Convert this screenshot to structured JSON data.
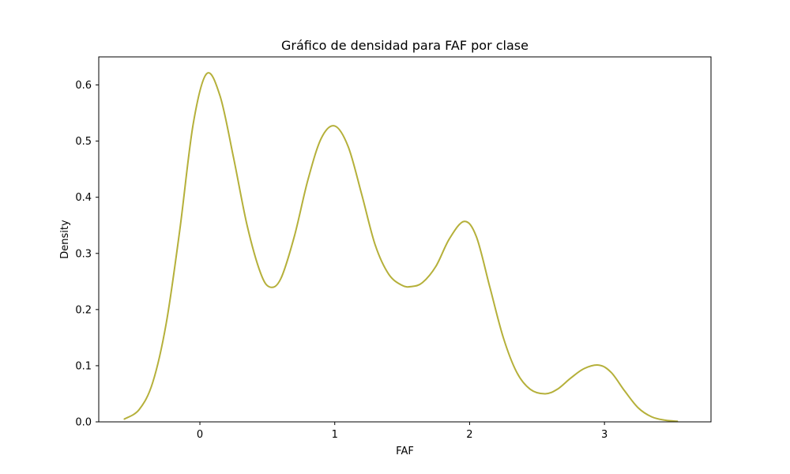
{
  "chart_data": {
    "type": "line",
    "title": "Gráfico de densidad para FAF por clase",
    "xlabel": "FAF",
    "ylabel": "Density",
    "xlim": [
      -0.75,
      3.79
    ],
    "ylim": [
      0,
      0.65
    ],
    "xticks": [
      {
        "value": 0,
        "label": "0"
      },
      {
        "value": 1,
        "label": "1"
      },
      {
        "value": 2,
        "label": "2"
      },
      {
        "value": 3,
        "label": "3"
      }
    ],
    "yticks": [
      {
        "value": 0.0,
        "label": "0.0"
      },
      {
        "value": 0.1,
        "label": "0.1"
      },
      {
        "value": 0.2,
        "label": "0.2"
      },
      {
        "value": 0.3,
        "label": "0.3"
      },
      {
        "value": 0.4,
        "label": "0.4"
      },
      {
        "value": 0.5,
        "label": "0.5"
      },
      {
        "value": 0.6,
        "label": "0.6"
      }
    ],
    "grid": false,
    "series": [
      {
        "color": "#b5b03a",
        "x": [
          -0.56,
          -0.45,
          -0.35,
          -0.25,
          -0.15,
          -0.05,
          0.05,
          0.15,
          0.25,
          0.35,
          0.45,
          0.52,
          0.6,
          0.7,
          0.8,
          0.9,
          1.0,
          1.1,
          1.2,
          1.3,
          1.4,
          1.5,
          1.57,
          1.65,
          1.75,
          1.85,
          1.96,
          2.05,
          2.15,
          2.25,
          2.35,
          2.45,
          2.56,
          2.65,
          2.75,
          2.85,
          2.96,
          3.05,
          3.15,
          3.25,
          3.35,
          3.45,
          3.54
        ],
        "y": [
          0.005,
          0.022,
          0.07,
          0.175,
          0.34,
          0.53,
          0.62,
          0.58,
          0.47,
          0.35,
          0.265,
          0.24,
          0.255,
          0.33,
          0.43,
          0.505,
          0.527,
          0.49,
          0.405,
          0.315,
          0.263,
          0.243,
          0.241,
          0.248,
          0.277,
          0.326,
          0.357,
          0.33,
          0.24,
          0.15,
          0.088,
          0.058,
          0.05,
          0.058,
          0.078,
          0.095,
          0.101,
          0.088,
          0.055,
          0.025,
          0.009,
          0.003,
          0.001
        ]
      }
    ]
  }
}
